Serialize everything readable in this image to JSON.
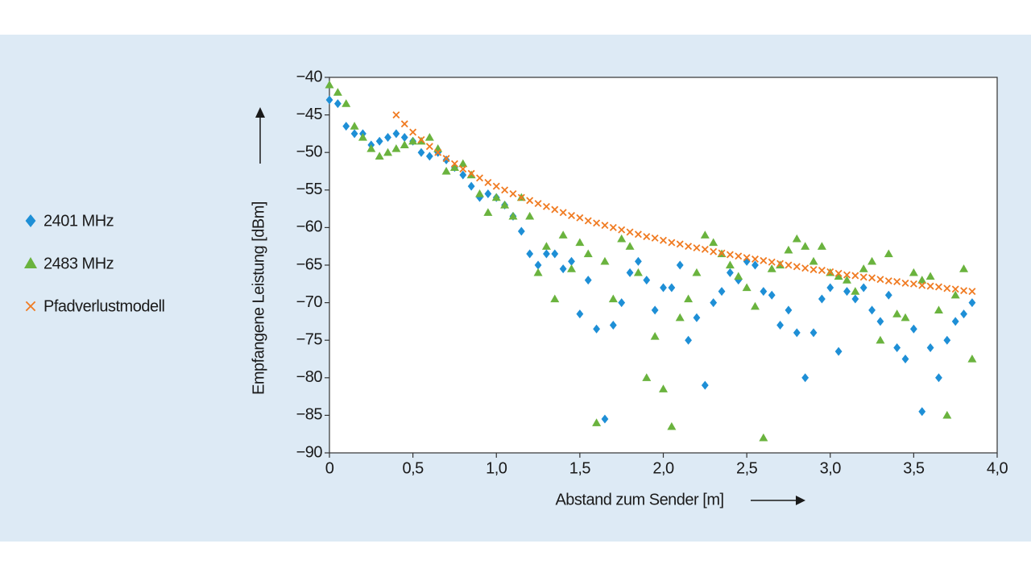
{
  "chart_data": {
    "type": "scatter",
    "xlabel": "Abstand zum Sender [m]",
    "ylabel": "Empfangene Leistung [dBm]",
    "xlim": [
      0,
      4.0
    ],
    "ylim": [
      -90,
      -40
    ],
    "xticks": [
      0,
      {
        "value": 0.5,
        "label": "0,5"
      },
      {
        "value": 1.0,
        "label": "1,0"
      },
      {
        "value": 1.5,
        "label": "1,5"
      },
      {
        "value": 2.0,
        "label": "2,0"
      },
      {
        "value": 2.5,
        "label": "2,5"
      },
      {
        "value": 3.0,
        "label": "3,0"
      },
      {
        "value": 3.5,
        "label": "3,5"
      },
      {
        "value": 4.0,
        "label": "4,0"
      }
    ],
    "yticks": [
      {
        "value": -90,
        "label": "−90"
      },
      {
        "value": -85,
        "label": "−85"
      },
      {
        "value": -80,
        "label": "−80"
      },
      {
        "value": -75,
        "label": "−75"
      },
      {
        "value": -70,
        "label": "−70"
      },
      {
        "value": -65,
        "label": "−65"
      },
      {
        "value": -60,
        "label": "−60"
      },
      {
        "value": -55,
        "label": "−55"
      },
      {
        "value": -50,
        "label": "−50"
      },
      {
        "value": -45,
        "label": "−45"
      },
      {
        "value": -40,
        "label": "−40"
      }
    ],
    "grid": false,
    "legend": "left",
    "series": [
      {
        "name": "2401 MHz",
        "color": "#1e8fd6",
        "marker": "diamond",
        "x": [
          0,
          0.05,
          0.1,
          0.15,
          0.2,
          0.25,
          0.3,
          0.35,
          0.4,
          0.45,
          0.5,
          0.55,
          0.6,
          0.65,
          0.7,
          0.75,
          0.8,
          0.85,
          0.9,
          0.95,
          1.0,
          1.05,
          1.1,
          1.15,
          1.2,
          1.25,
          1.3,
          1.35,
          1.4,
          1.45,
          1.5,
          1.55,
          1.6,
          1.65,
          1.7,
          1.75,
          1.8,
          1.85,
          1.9,
          1.95,
          2.0,
          2.05,
          2.1,
          2.15,
          2.2,
          2.25,
          2.3,
          2.35,
          2.4,
          2.45,
          2.5,
          2.55,
          2.6,
          2.65,
          2.7,
          2.75,
          2.8,
          2.85,
          2.9,
          2.95,
          3.0,
          3.05,
          3.1,
          3.15,
          3.2,
          3.25,
          3.3,
          3.35,
          3.4,
          3.45,
          3.5,
          3.55,
          3.6,
          3.65,
          3.7,
          3.75,
          3.8,
          3.85
        ],
        "values": [
          -43,
          -43.5,
          -46.5,
          -47.5,
          -47.5,
          -49,
          -48.5,
          -48,
          -47.5,
          -48,
          -48.5,
          -50,
          -50.5,
          -50,
          -51,
          -52,
          -53,
          -54.5,
          -56,
          -55.5,
          -56,
          -57,
          -58.5,
          -60.5,
          -63.5,
          -65,
          -63.5,
          -63.5,
          -65.5,
          -64.5,
          -71.5,
          -67,
          -73.5,
          -85.5,
          -73,
          -70,
          -66,
          -64.5,
          -67,
          -71,
          -68,
          -68,
          -65,
          -75,
          -72,
          -81,
          -70,
          -68.5,
          -66,
          -67,
          -64.5,
          -65,
          -68.5,
          -69,
          -73,
          -71,
          -74,
          -80,
          -74,
          -69.5,
          -68,
          -76.5,
          -68.5,
          -69.5,
          -68,
          -71,
          -72.5,
          -69,
          -76,
          -77.5,
          -73.5,
          -84.5,
          -76,
          -80,
          -75,
          -72.5,
          -71.5,
          -70
        ]
      },
      {
        "name": "2483 MHz",
        "color": "#6ab33e",
        "marker": "triangle",
        "x": [
          0,
          0.05,
          0.1,
          0.15,
          0.2,
          0.25,
          0.3,
          0.35,
          0.4,
          0.45,
          0.5,
          0.55,
          0.6,
          0.65,
          0.7,
          0.75,
          0.8,
          0.85,
          0.9,
          0.95,
          1.0,
          1.05,
          1.1,
          1.15,
          1.2,
          1.25,
          1.3,
          1.35,
          1.4,
          1.45,
          1.5,
          1.55,
          1.6,
          1.65,
          1.7,
          1.75,
          1.8,
          1.85,
          1.9,
          1.95,
          2.0,
          2.05,
          2.1,
          2.15,
          2.2,
          2.25,
          2.3,
          2.35,
          2.4,
          2.45,
          2.5,
          2.55,
          2.6,
          2.65,
          2.7,
          2.75,
          2.8,
          2.85,
          2.9,
          2.95,
          3.0,
          3.05,
          3.1,
          3.15,
          3.2,
          3.25,
          3.3,
          3.35,
          3.4,
          3.45,
          3.5,
          3.55,
          3.6,
          3.65,
          3.7,
          3.75,
          3.8,
          3.85
        ],
        "values": [
          -41,
          -42,
          -43.5,
          -46.5,
          -48,
          -49.5,
          -50.5,
          -50,
          -49.5,
          -49,
          -48.5,
          -48.5,
          -48,
          -49.5,
          -52.5,
          -52,
          -51.5,
          -53,
          -55.5,
          -58,
          -56,
          -57,
          -58.5,
          -56,
          -58.5,
          -66,
          -62.5,
          -69.5,
          -61,
          -65.5,
          -62,
          -63.5,
          -86,
          -64.5,
          -69.5,
          -61.5,
          -62.5,
          -66,
          -80,
          -74.5,
          -81.5,
          -86.5,
          -72,
          -69.5,
          -66,
          -61,
          -62,
          -63.5,
          -65,
          -66.5,
          -68,
          -70.5,
          -88,
          -65.5,
          -65,
          -63,
          -61.5,
          -62.5,
          -64.5,
          -62.5,
          -66,
          -66.5,
          -67,
          -68.5,
          -65.5,
          -64.5,
          -75,
          -63.5,
          -71.5,
          -72,
          -66,
          -67,
          -66.5,
          -71,
          -85,
          -69,
          -65.5,
          -77.5
        ]
      },
      {
        "name": "Pfadverlustmodell",
        "color": "#f07b22",
        "marker": "cross",
        "x": [
          0.4,
          0.45,
          0.5,
          0.55,
          0.6,
          0.65,
          0.7,
          0.75,
          0.8,
          0.85,
          0.9,
          0.95,
          1.0,
          1.05,
          1.1,
          1.15,
          1.2,
          1.25,
          1.3,
          1.35,
          1.4,
          1.45,
          1.5,
          1.55,
          1.6,
          1.65,
          1.7,
          1.75,
          1.8,
          1.85,
          1.9,
          1.95,
          2.0,
          2.05,
          2.1,
          2.15,
          2.2,
          2.25,
          2.3,
          2.35,
          2.4,
          2.45,
          2.5,
          2.55,
          2.6,
          2.65,
          2.7,
          2.75,
          2.8,
          2.85,
          2.9,
          2.95,
          3.0,
          3.05,
          3.1,
          3.15,
          3.2,
          3.25,
          3.3,
          3.35,
          3.4,
          3.45,
          3.5,
          3.55,
          3.6,
          3.65,
          3.7,
          3.75,
          3.8,
          3.85
        ],
        "values": [
          -45.0,
          -46.2,
          -47.3,
          -48.3,
          -49.2,
          -50.0,
          -50.8,
          -51.5,
          -52.2,
          -52.8,
          -53.4,
          -54.0,
          -54.5,
          -55.0,
          -55.5,
          -56.0,
          -56.4,
          -56.8,
          -57.2,
          -57.6,
          -58.0,
          -58.4,
          -58.7,
          -59.1,
          -59.4,
          -59.7,
          -60.0,
          -60.3,
          -60.6,
          -60.9,
          -61.2,
          -61.4,
          -61.7,
          -62.0,
          -62.2,
          -62.5,
          -62.7,
          -62.9,
          -63.2,
          -63.4,
          -63.6,
          -63.8,
          -64.0,
          -64.2,
          -64.4,
          -64.6,
          -64.8,
          -65.0,
          -65.2,
          -65.4,
          -65.6,
          -65.7,
          -65.9,
          -66.1,
          -66.3,
          -66.4,
          -66.6,
          -66.7,
          -66.9,
          -67.1,
          -67.2,
          -67.4,
          -67.5,
          -67.7,
          -67.8,
          -67.9,
          -68.1,
          -68.2,
          -68.4,
          -68.5
        ]
      }
    ]
  }
}
